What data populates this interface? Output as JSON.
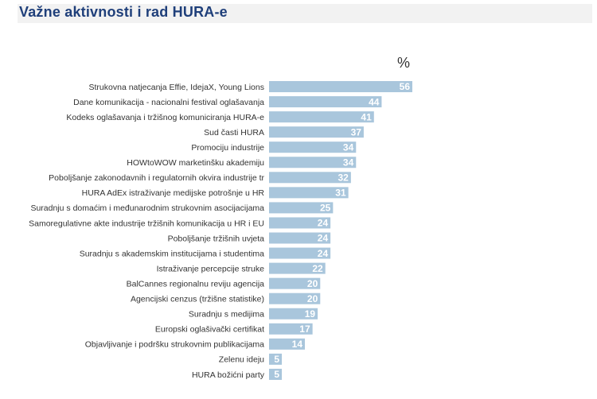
{
  "header": {
    "title": "Važne aktivnosti i rad HURA-e"
  },
  "colors": {
    "title": "#1f3f7a",
    "bar": "#a9c6dc",
    "title_band": "#f2f2f2"
  },
  "chart_data": {
    "type": "bar",
    "orientation": "horizontal",
    "unit": "%",
    "categories": [
      "Strukovna natjecanja Effie, IdejaX, Young Lions",
      "Dane komunikacija - nacionalni festival oglašavanja",
      "Kodeks oglašavanja i tržišnog komuniciranja HURA-e",
      "Sud časti HURA",
      "Promociju industrije",
      "HOWtoWOW marketinšku akademiju",
      "Poboljšanje zakonodavnih i regulatornih okvira industrije tr",
      "HURA AdEx istraživanje medijske potrošnje u HR",
      "Suradnju s domaćim i međunarodnim strukovnim asocijacijama",
      "Samoregulativne akte industrije tržišnih komunikacija u HR i EU",
      "Poboljšanje tržišnih uvjeta",
      "Suradnju s akademskim institucijama i studentima",
      "Istraživanje percepcije struke",
      "BalCannes regionalnu reviju agencija",
      "Agencijski cenzus (tržišne statistike)",
      "Suradnju s medijima",
      "Europski oglašivački certifikat",
      "Objavljivanje i podršku strukovnim publikacijama",
      "Zelenu ideju",
      "HURA božićni party"
    ],
    "values": [
      56,
      44,
      41,
      37,
      34,
      34,
      32,
      31,
      25,
      24,
      24,
      24,
      22,
      20,
      20,
      19,
      17,
      14,
      5,
      5
    ],
    "xlim": [
      0,
      56
    ],
    "grid": false,
    "legend": "none"
  }
}
